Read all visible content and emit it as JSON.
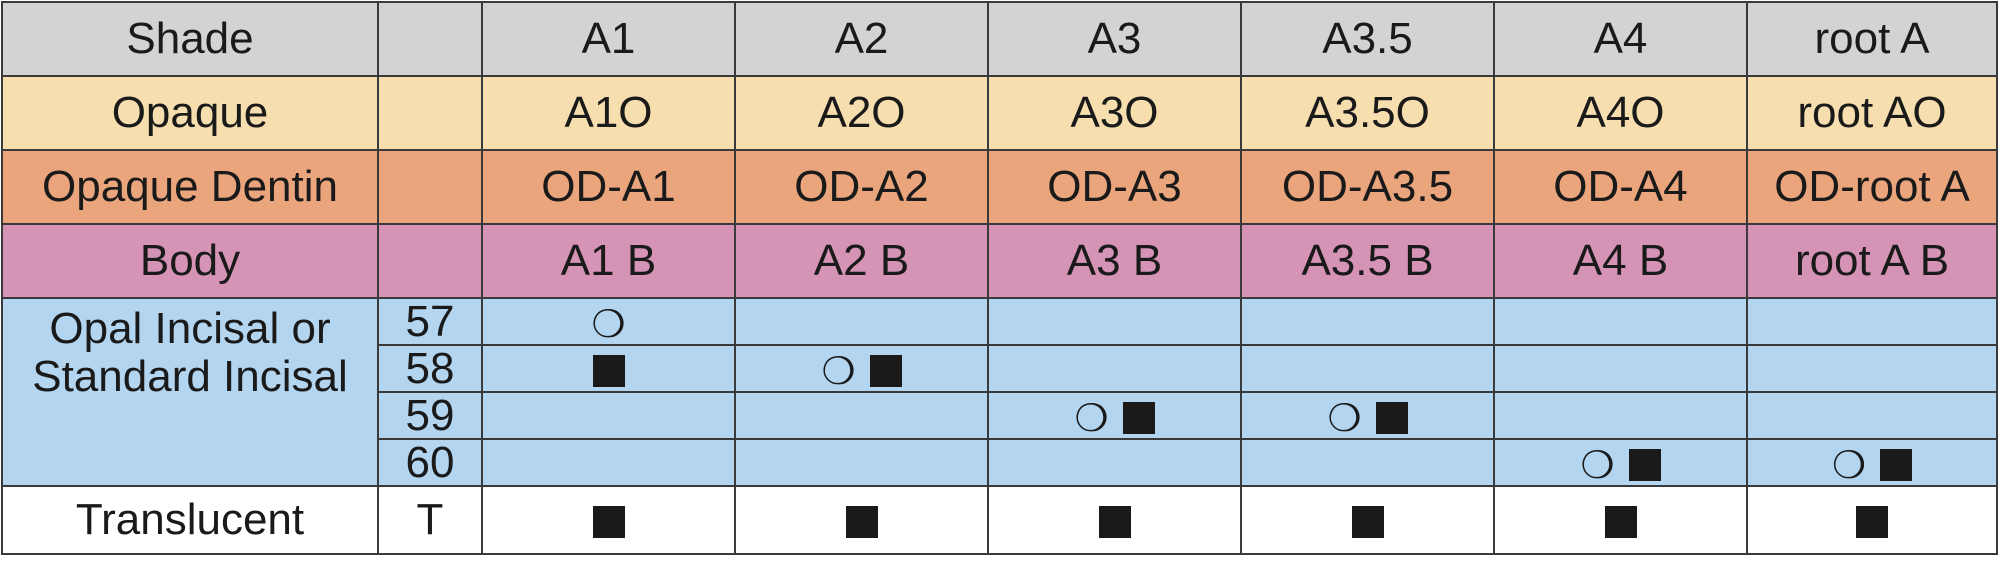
{
  "table": {
    "header": {
      "label": "Shade",
      "code": "",
      "columns": [
        "A1",
        "A2",
        "A3",
        "A3.5",
        "A4",
        "root A"
      ]
    },
    "opaque": {
      "label": "Opaque",
      "values": [
        "A1O",
        "A2O",
        "A3O",
        "A3.5O",
        "A4O",
        "root AO"
      ]
    },
    "opaque_dentin": {
      "label": "Opaque Dentin",
      "values": [
        "OD-A1",
        "OD-A2",
        "OD-A3",
        "OD-A3.5",
        "OD-A4",
        "OD-root A"
      ]
    },
    "body": {
      "label": "Body",
      "values": [
        "A1 B",
        "A2 B",
        "A3 B",
        "A3.5 B",
        "A4 B",
        "root A B"
      ]
    },
    "incisal": {
      "label": "Opal Incisal or Standard Incisal",
      "rows": [
        {
          "code": "57",
          "marks": [
            "moon",
            "",
            "",
            "",
            "",
            ""
          ]
        },
        {
          "code": "58",
          "marks": [
            "square",
            "moon-square",
            "",
            "",
            "",
            ""
          ]
        },
        {
          "code": "59",
          "marks": [
            "",
            "",
            "moon-square",
            "moon-square",
            "",
            ""
          ]
        },
        {
          "code": "60",
          "marks": [
            "",
            "",
            "",
            "",
            "moon-square",
            "moon-square"
          ]
        }
      ]
    },
    "translucent": {
      "label": "Translucent",
      "code": "T",
      "marks": [
        "square",
        "square",
        "square",
        "square",
        "square",
        "square"
      ]
    },
    "symbols": {
      "moon": "❍",
      "square": "■"
    },
    "colors": {
      "shade_row": "#d1d3d4",
      "opaque_row": "#f6deae",
      "opaque_dentin_row": "#eaa57c",
      "body_row": "#d593b6",
      "incisal_row": "#b3d5ef",
      "translucent_row": "#ffffff"
    }
  }
}
